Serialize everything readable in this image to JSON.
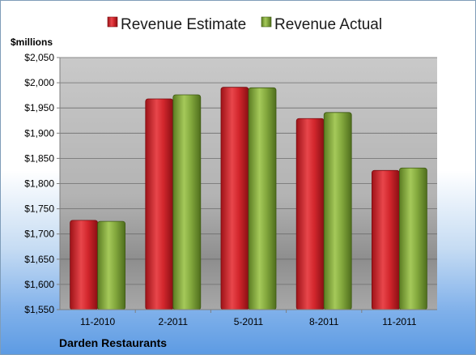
{
  "chart_data": {
    "type": "bar",
    "unit_label": "$millions",
    "categories": [
      "11-2010",
      "2-2011",
      "5-2011",
      "8-2011",
      "11-2011"
    ],
    "series": [
      {
        "name": "Revenue Estimate",
        "color": "#c8252b",
        "values": [
          1727,
          1968,
          1991,
          1929,
          1826
        ]
      },
      {
        "name": "Revenue Actual",
        "color": "#7fa33a",
        "values": [
          1725,
          1976,
          1990,
          1941,
          1831
        ]
      }
    ],
    "ylim": [
      1550,
      2050
    ],
    "yticks": [
      "$1,550",
      "$1,600",
      "$1,650",
      "$1,700",
      "$1,750",
      "$1,800",
      "$1,850",
      "$1,900",
      "$1,950",
      "$2,000",
      "$2,050"
    ],
    "ytick_values": [
      1550,
      1600,
      1650,
      1700,
      1750,
      1800,
      1850,
      1900,
      1950,
      2000,
      2050
    ],
    "grid": true,
    "legend_position": "top-center"
  },
  "footer": {
    "company": "Darden Restaurants"
  }
}
